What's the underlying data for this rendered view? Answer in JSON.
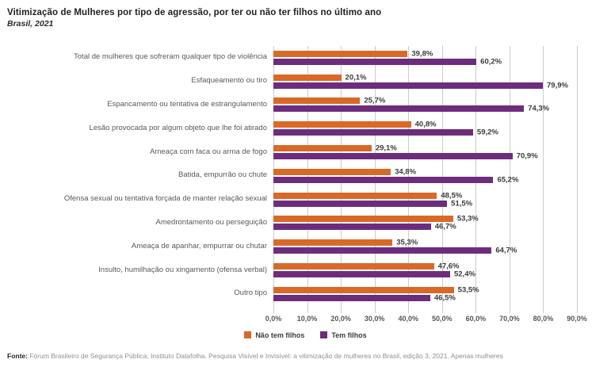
{
  "header": {
    "title": "Vitimização de Mulheres por tipo de agressão, por ter ou não ter filhos no último ano",
    "subtitle": "Brasil, 2021"
  },
  "chart_data": {
    "type": "bar",
    "orientation": "horizontal",
    "grouped": true,
    "grid": true,
    "categories": [
      "Total de mulheres que sofreram qualquer tipo de violência",
      "Esfaqueamento ou tiro",
      "Espancamento ou tentativa de estrangulamento",
      "Lesão provocada por algum objeto que lhe foi atirado",
      "Ameaça com faca ou arma de fogo",
      "Batida, empurrão ou chute",
      "Ofensa sexual ou tentativa forçada de manter relação sexual",
      "Amedrontamento ou perseguição",
      "Ameaça de apanhar, empurrar ou chutar",
      "Insulto, humilhação ou xingamento (ofensa verbal)",
      "Outro tipo"
    ],
    "series": [
      {
        "name": "Não tem filhos",
        "color": "#D96926",
        "values": [
          39.8,
          20.1,
          25.7,
          40.8,
          29.1,
          34.8,
          48.5,
          53.3,
          35.3,
          47.6,
          53.5
        ],
        "value_labels": [
          "39,8%",
          "20,1%",
          "25,7%",
          "40,8%",
          "29,1%",
          "34,8%",
          "48,5%",
          "53,3%",
          "35,3%",
          "47,6%",
          "53,5%"
        ]
      },
      {
        "name": "Tem filhos",
        "color": "#6E2C7D",
        "values": [
          60.2,
          79.9,
          74.3,
          59.2,
          70.9,
          65.2,
          51.5,
          46.7,
          64.7,
          52.4,
          46.5
        ],
        "value_labels": [
          "60,2%",
          "79,9%",
          "74,3%",
          "59,2%",
          "70,9%",
          "65,2%",
          "51,5%",
          "46,7%",
          "64,7%",
          "52,4%",
          "46,5%"
        ]
      }
    ],
    "x_axis": {
      "min": 0,
      "max": 90,
      "tick_labels": [
        "0,0%",
        "10,0%",
        "20,0%",
        "30,0%",
        "40,0%",
        "50,0%",
        "60,0%",
        "70,0%",
        "80,0%",
        "90,0%"
      ]
    },
    "legend": {
      "position": "bottom",
      "items": [
        "Não tem filhos",
        "Tem filhos"
      ]
    }
  },
  "footer": {
    "source_label": "Fonte:",
    "source_text": "Fórum Brasileiro de Segurança Pública; Instituto Datafolha. Pesquisa Visível e Invisível: a vitimização de mulheres no Brasil, edição 3, 2021. Apenas mulheres"
  }
}
